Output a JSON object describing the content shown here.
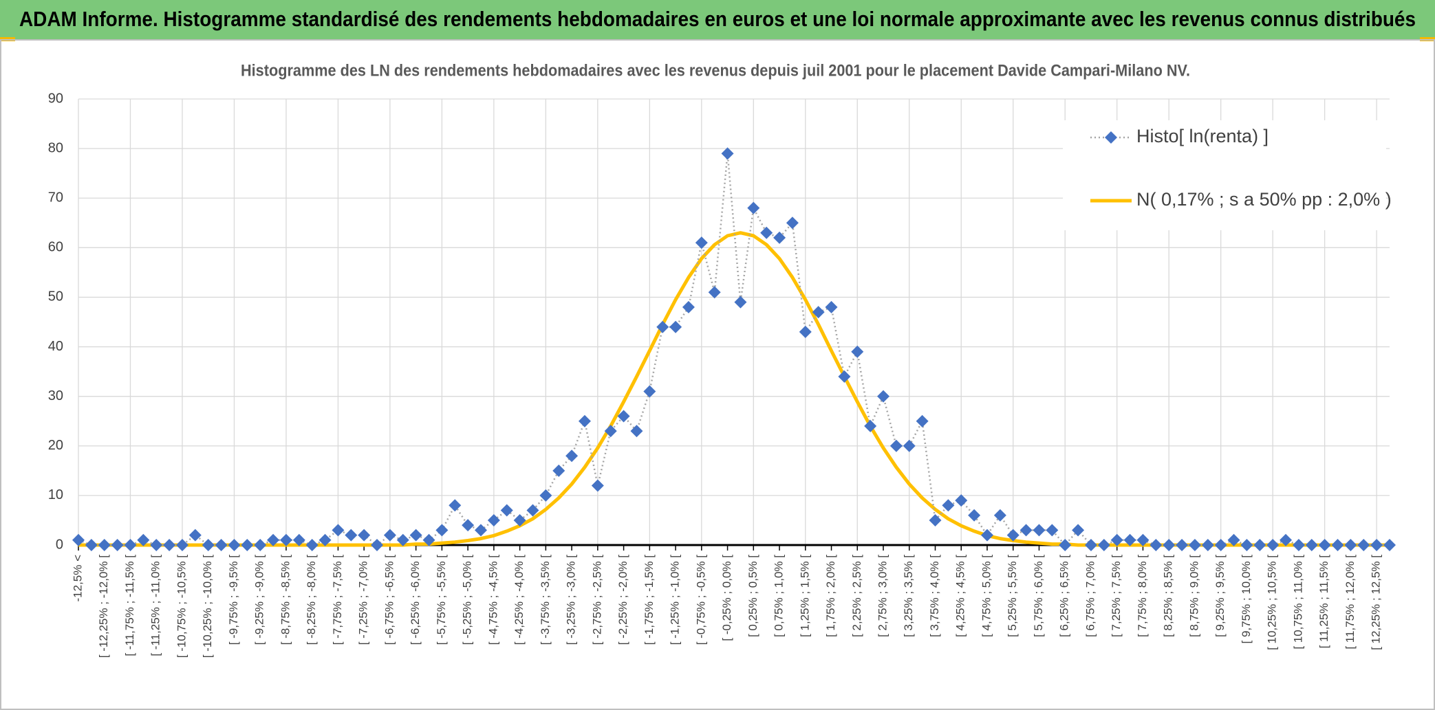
{
  "chart_data": {
    "type": "line",
    "header": "ADAM Informe. Histogramme standardisé des rendements hebdomadaires en euros et une loi normale approximante avec les revenus connus distribués",
    "title": "Histogramme des LN des rendements hebdomadaires avec les revenus depuis juil 2001 pour le placement Davide Campari-Milano NV.",
    "categories": [
      "-12,5% <",
      null,
      "[ -12,25% ; -12,0% [",
      null,
      "[ -11,75% ; -11,5% [",
      null,
      "[ -11,25% ; -11,0% [",
      null,
      "[ -10,75% ; -10,5% [",
      null,
      "[ -10,25% ; -10,0% [",
      null,
      "[ -9,75% ; -9,5% [",
      null,
      "[ -9,25% ; -9,0% [",
      null,
      "[ -8,75% ; -8,5% [",
      null,
      "[ -8,25% ; -8,0% [",
      null,
      "[ -7,75% ; -7,5% [",
      null,
      "[ -7,25% ; -7,0% [",
      null,
      "[ -6,75% ; -6,5% [",
      null,
      "[ -6,25% ; -6,0% [",
      null,
      "[ -5,75% ; -5,5% [",
      null,
      "[ -5,25% ; -5,0% [",
      null,
      "[ -4,75% ; -4,5% [",
      null,
      "[ -4,25% ; -4,0% [",
      null,
      "[ -3,75% ; -3,5% [",
      null,
      "[ -3,25% ; -3,0% [",
      null,
      "[ -2,75% ; -2,5% [",
      null,
      "[ -2,25% ; -2,0% [",
      null,
      "[ -1,75% ; -1,5% [",
      null,
      "[ -1,25% ; -1,0% [",
      null,
      "[ -0,75% ; -0,5% [",
      null,
      "[ -0,25% ; 0,0% [",
      null,
      "[ 0,25% ; 0,5% [",
      null,
      "[ 0,75% ; 1,0% [",
      null,
      "[ 1,25% ; 1,5% [",
      null,
      "[ 1,75% ; 2,0% [",
      null,
      "[ 2,25% ; 2,5% [",
      null,
      "[ 2,75% ; 3,0% [",
      null,
      "[ 3,25% ; 3,5% [",
      null,
      "[ 3,75% ; 4,0% [",
      null,
      "[ 4,25% ; 4,5% [",
      null,
      "[ 4,75% ; 5,0% [",
      null,
      "[ 5,25% ; 5,5% [",
      null,
      "[ 5,75% ; 6,0% [",
      null,
      "[ 6,25% ; 6,5% [",
      null,
      "[ 6,75% ; 7,0% [",
      null,
      "[ 7,25% ; 7,5% [",
      null,
      "[ 7,75% ; 8,0% [",
      null,
      "[ 8,25% ; 8,5% [",
      null,
      "[ 8,75% ; 9,0% [",
      null,
      "[ 9,25% ; 9,5% [",
      null,
      "[ 9,75% ; 10,0% [",
      null,
      "[ 10,25% ; 10,5% [",
      null,
      "[ 10,75% ; 11,0% [",
      null,
      "[ 11,25% ; 11,5% [",
      null,
      "[ 11,75% ; 12,0% [",
      null,
      "[ 12,25% ; 12,5% [",
      null
    ],
    "series": [
      {
        "name": "Histo[ ln(renta) ]",
        "color": "#4472c4",
        "marker": "diamond",
        "values": [
          1,
          0,
          0,
          0,
          0,
          1,
          0,
          0,
          0,
          2,
          0,
          0,
          0,
          0,
          0,
          1,
          1,
          1,
          0,
          1,
          3,
          2,
          2,
          0,
          2,
          1,
          2,
          1,
          3,
          8,
          4,
          3,
          5,
          7,
          5,
          7,
          10,
          15,
          18,
          25,
          12,
          23,
          26,
          23,
          31,
          44,
          44,
          48,
          61,
          51,
          79,
          49,
          68,
          63,
          62,
          65,
          43,
          47,
          48,
          34,
          39,
          24,
          30,
          20,
          20,
          25,
          5,
          8,
          9,
          6,
          2,
          6,
          2,
          3,
          3,
          3,
          0,
          3,
          0,
          0,
          1,
          1,
          1,
          0,
          0,
          0,
          0,
          0,
          0,
          1,
          0,
          0,
          0,
          1,
          0,
          0,
          0,
          0,
          0,
          0,
          0,
          0
        ]
      },
      {
        "name": "N( 0,17% ; s a 50% pp : 2,0% )",
        "color": "#ffc000",
        "values": [
          0,
          0,
          0,
          0,
          0,
          0,
          0,
          0,
          0,
          0,
          0,
          0,
          0,
          0,
          0,
          0,
          0,
          0,
          0,
          0,
          0,
          0,
          0,
          0,
          0,
          0,
          0.2,
          0.2,
          0.4,
          0.6,
          0.9,
          1.3,
          1.9,
          2.8,
          3.9,
          5.3,
          7.2,
          9.5,
          12.3,
          15.7,
          19.6,
          24.0,
          28.9,
          34.0,
          39.2,
          44.5,
          49.5,
          54.0,
          57.8,
          60.6,
          62.4,
          63,
          62.4,
          60.6,
          57.8,
          54.0,
          49.5,
          44.5,
          39.2,
          34.0,
          28.9,
          24.0,
          19.6,
          15.7,
          12.3,
          9.5,
          7.2,
          5.3,
          3.9,
          2.8,
          1.9,
          1.3,
          0.9,
          0.6,
          0.4,
          0.2,
          0.2,
          0,
          0,
          0,
          0,
          0,
          0,
          0,
          0,
          0,
          0,
          0,
          0,
          0,
          0,
          0,
          0,
          0,
          0,
          0,
          0,
          0,
          0,
          0,
          0,
          0
        ]
      }
    ],
    "ylim": [
      0,
      90
    ],
    "yticks": [
      0,
      10,
      20,
      30,
      40,
      50,
      60,
      70,
      80,
      90
    ],
    "grid": true,
    "legend": "top-right"
  }
}
